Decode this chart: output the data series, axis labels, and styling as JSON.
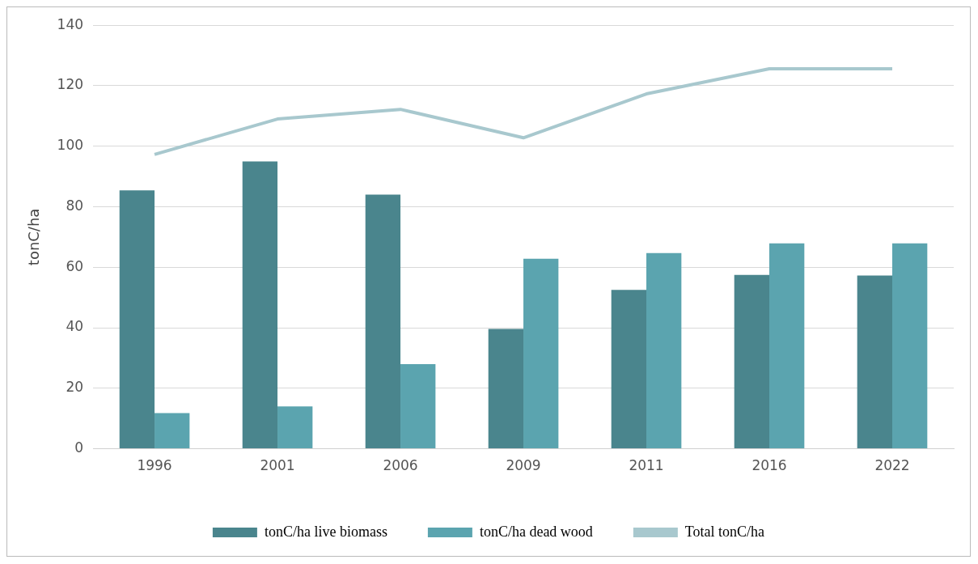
{
  "chart_data": {
    "type": "bar",
    "ylabel": "tonC/ha",
    "categories": [
      "1996",
      "2001",
      "2006",
      "2009",
      "2011",
      "2016",
      "2022"
    ],
    "series": [
      {
        "name": "tonC/ha live biomass",
        "color": "#4a858d",
        "values": [
          85.4,
          95,
          84,
          39.6,
          52.5,
          57.5,
          57.3
        ]
      },
      {
        "name": "tonC/ha dead wood",
        "color": "#5ba4af",
        "values": [
          11.8,
          14,
          28,
          62.8,
          64.7,
          67.9,
          67.9
        ]
      },
      {
        "name": "Total tonC/ha",
        "type": "line",
        "color": "#a8c8ce",
        "values": [
          97.3,
          109,
          112.2,
          102.8,
          117.3,
          125.6,
          125.6
        ]
      }
    ],
    "ylim": [
      0,
      140
    ],
    "yticks": [
      0,
      20,
      40,
      60,
      80,
      100,
      120,
      140
    ],
    "grid": "y",
    "legend": "bottom"
  }
}
